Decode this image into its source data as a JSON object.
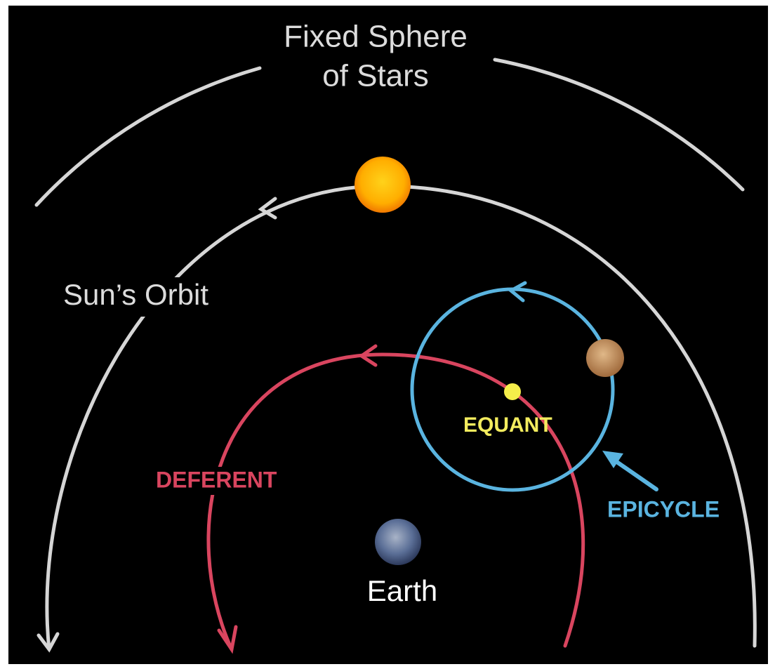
{
  "labels": {
    "sphere_line1": "Fixed Sphere",
    "sphere_line2": "of Stars",
    "sun_orbit": "Sun’s Orbit",
    "deferent": "DEFERENT",
    "equant": "EQUANT",
    "epicycle": "EPICYCLE",
    "earth": "Earth"
  }
}
